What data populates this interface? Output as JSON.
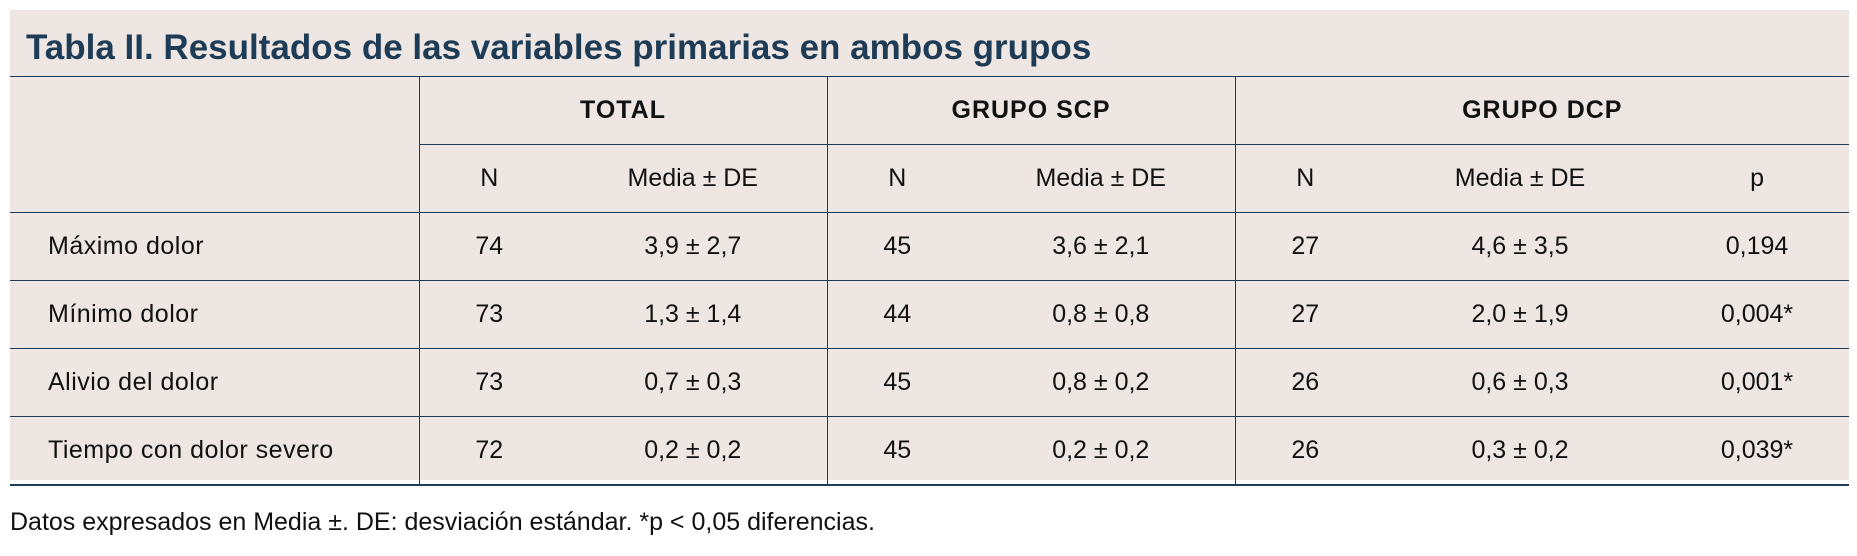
{
  "title": "Tabla II. Resultados de las variables primarias en ambos grupos",
  "header": {
    "groups": [
      "TOTAL",
      "GRUPO SCP",
      "GRUPO DCP"
    ],
    "subcolumns": [
      "N",
      "Media ± DE",
      "N",
      "Media ± DE",
      "N",
      "Media ± DE",
      "p"
    ]
  },
  "rows": [
    {
      "label": "Máximo dolor",
      "cells": [
        "74",
        "3,9 ± 2,7",
        "45",
        "3,6 ± 2,1",
        "27",
        "4,6 ± 3,5",
        "0,194"
      ]
    },
    {
      "label": "Mínimo dolor",
      "cells": [
        "73",
        "1,3 ± 1,4",
        "44",
        "0,8 ± 0,8",
        "27",
        "2,0 ± 1,9",
        "0,004*"
      ]
    },
    {
      "label": "Alivio del dolor",
      "cells": [
        "73",
        "0,7 ± 0,3",
        "45",
        "0,8 ± 0,2",
        "26",
        "0,6 ± 0,3",
        "0,001*"
      ]
    },
    {
      "label": "Tiempo con dolor severo",
      "cells": [
        "72",
        "0,2 ± 0,2",
        "45",
        "0,2 ± 0,2",
        "26",
        "0,3 ± 0,2",
        "0,039*"
      ]
    }
  ],
  "footnote": "Datos expresados en Media ±. DE: desviación estándar. *p < 0,05 diferencias.",
  "colors": {
    "panel_background": "#ede6e3",
    "title_and_rules": "#1f3c56"
  }
}
